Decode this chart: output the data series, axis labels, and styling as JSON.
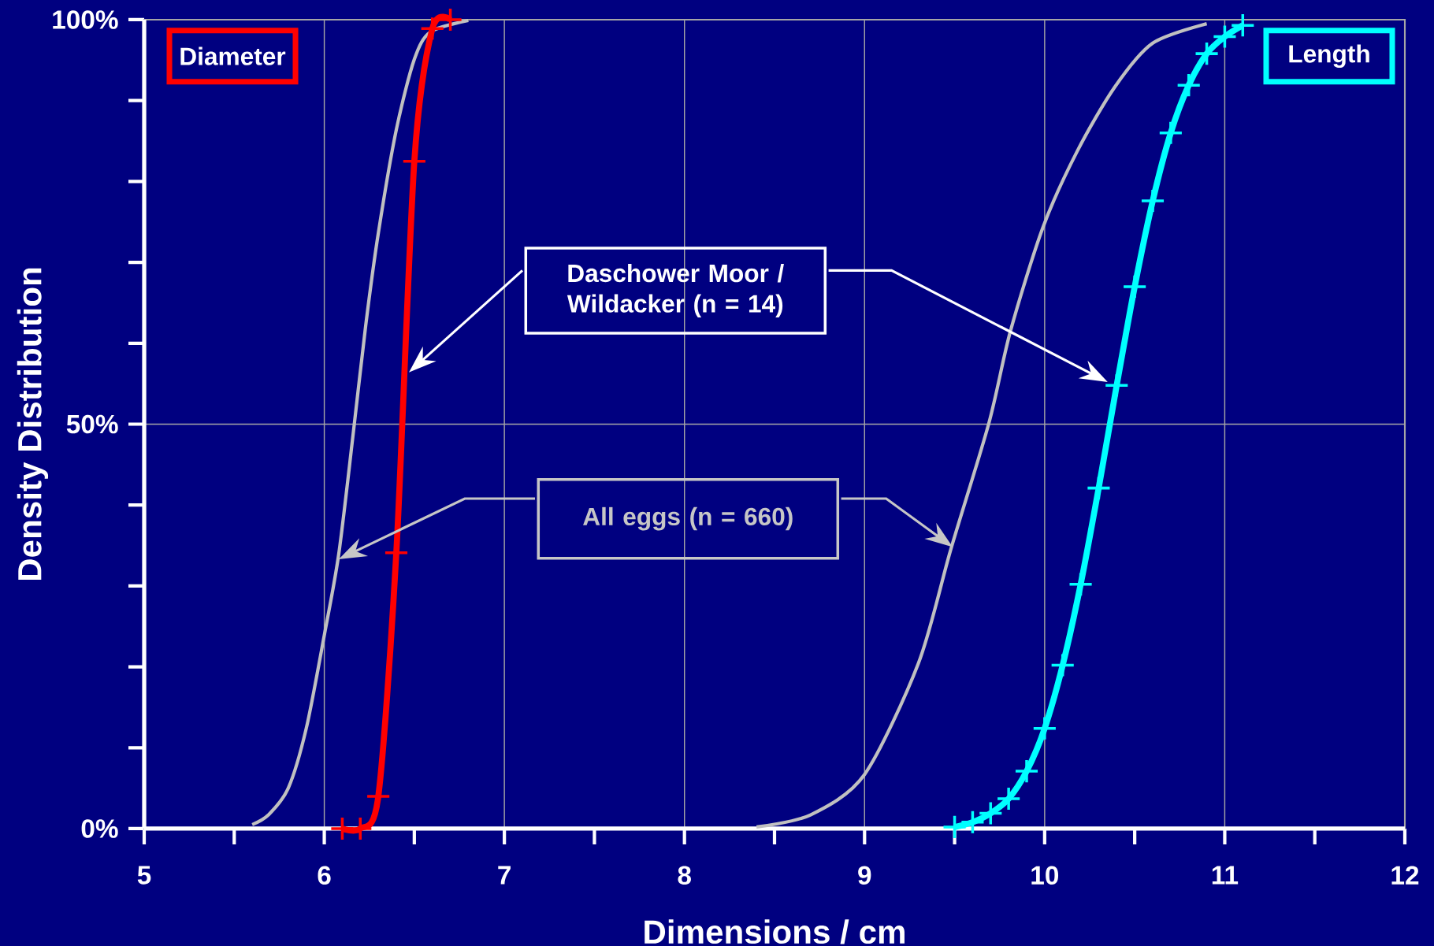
{
  "chart_data": {
    "type": "line",
    "xlabel": "Dimensions / cm",
    "ylabel": "Density Distribution",
    "xlim": [
      5,
      12
    ],
    "xticks": [
      5,
      6,
      7,
      8,
      9,
      10,
      11,
      12
    ],
    "ylim": [
      0,
      100
    ],
    "yticks": [
      {
        "value": 0,
        "label": "0%"
      },
      {
        "value": 50,
        "label": "50%"
      },
      {
        "value": 100,
        "label": "100%"
      }
    ],
    "grid": true,
    "series": [
      {
        "color": "#c0c0c0",
        "marker": "none",
        "x": [
          5.6,
          5.69,
          5.8,
          5.9,
          6.0,
          6.08,
          6.16,
          6.23,
          6.3,
          6.4,
          6.5,
          6.59,
          6.8
        ],
        "values": [
          0.5,
          1.7,
          5.0,
          12.4,
          23.9,
          33.9,
          48.7,
          62.2,
          73.6,
          86.4,
          95.1,
          98.5,
          99.9
        ]
      },
      {
        "color": "#c0c0c0",
        "marker": "none",
        "x": [
          8.4,
          8.7,
          9.0,
          9.3,
          9.48,
          9.69,
          9.81,
          9.99,
          10.18,
          10.39,
          10.6,
          10.9
        ],
        "values": [
          0.2,
          1.7,
          6.7,
          20.5,
          34.6,
          50.1,
          61.5,
          74.3,
          83.7,
          91.7,
          97.1,
          99.5
        ]
      },
      {
        "color": "#ff0000",
        "marker": "cross",
        "x": [
          6.1,
          6.2,
          6.3,
          6.4,
          6.5,
          6.6,
          6.7
        ],
        "values": [
          0,
          0,
          4.0,
          34.1,
          82.5,
          98.9,
          100
        ]
      },
      {
        "color": "#00ffff",
        "marker": "cross",
        "x": [
          9.5,
          9.6,
          9.7,
          9.8,
          9.9,
          10.0,
          10.1,
          10.2,
          10.3,
          10.4,
          10.5,
          10.6,
          10.7,
          10.8,
          10.9,
          11.0,
          11.1
        ],
        "values": [
          0.2,
          0.8,
          1.9,
          3.7,
          7.1,
          12.4,
          20.2,
          30.2,
          42.1,
          54.8,
          67.0,
          77.6,
          86.0,
          91.9,
          95.8,
          97.9,
          99.3
        ]
      }
    ],
    "annotations": [
      "Daschower Moor / Wildacker  (n = 14)",
      "All eggs (n = 660)",
      "Diameter",
      "Length"
    ]
  }
}
